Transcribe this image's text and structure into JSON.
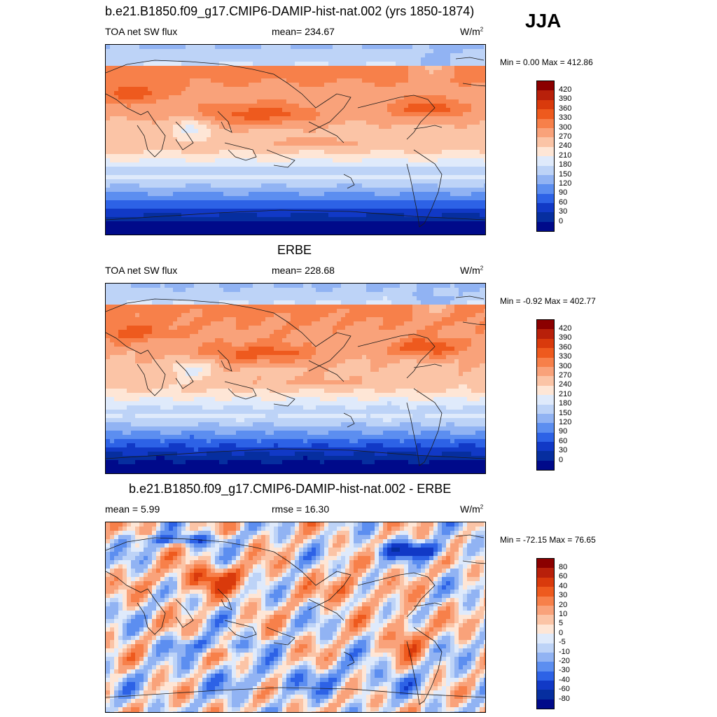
{
  "season": "JJA",
  "panels": [
    {
      "title": "b.e21.B1850.f09_g17.CMIP6-DAMIP-hist-nat.002 (yrs 1850-1874)",
      "left_label": "TOA net SW flux",
      "center_label": "mean= 234.67",
      "units_base": "W/m",
      "units_exp": "2",
      "minmax": "Min =   0.00 Max = 412.86",
      "colorbar": {
        "labels": [
          "420",
          "390",
          "360",
          "330",
          "300",
          "270",
          "240",
          "210",
          "180",
          "150",
          "120",
          "90",
          "60",
          "30",
          "0"
        ],
        "colors": [
          "#8b0000",
          "#b8200a",
          "#d93a0c",
          "#ee5a1e",
          "#f7804a",
          "#f9a27a",
          "#fbc4a6",
          "#fee6d6",
          "#dfeafb",
          "#bdd3f7",
          "#91b3f3",
          "#5c8ef0",
          "#2d62e6",
          "#1139c6",
          "#062e9f",
          "#000a8a"
        ]
      },
      "map_type": "sw"
    },
    {
      "title": "ERBE",
      "left_label": "TOA net SW flux",
      "center_label": "mean= 228.68",
      "units_base": "W/m",
      "units_exp": "2",
      "minmax": "Min =  -0.92 Max = 402.77",
      "colorbar": {
        "labels": [
          "420",
          "390",
          "360",
          "330",
          "300",
          "270",
          "240",
          "210",
          "180",
          "150",
          "120",
          "90",
          "60",
          "30",
          "0"
        ],
        "colors": [
          "#8b0000",
          "#b8200a",
          "#d93a0c",
          "#ee5a1e",
          "#f7804a",
          "#f9a27a",
          "#fbc4a6",
          "#fee6d6",
          "#dfeafb",
          "#bdd3f7",
          "#91b3f3",
          "#5c8ef0",
          "#2d62e6",
          "#1139c6",
          "#062e9f",
          "#000a8a"
        ]
      },
      "map_type": "sw"
    },
    {
      "title": "b.e21.B1850.f09_g17.CMIP6-DAMIP-hist-nat.002 - ERBE",
      "left_label": "mean =   5.99",
      "center_label": "rmse =  16.30",
      "units_base": "W/m",
      "units_exp": "2",
      "minmax": "Min = -72.15 Max =  76.65",
      "colorbar": {
        "labels": [
          "80",
          "60",
          "40",
          "30",
          "20",
          "10",
          "5",
          "0",
          "-5",
          "-10",
          "-20",
          "-30",
          "-40",
          "-60",
          "-80"
        ],
        "colors": [
          "#8b0000",
          "#b8200a",
          "#d93a0c",
          "#ee5a1e",
          "#f7804a",
          "#f9a27a",
          "#fbc4a6",
          "#fee6d6",
          "#dfeafb",
          "#bdd3f7",
          "#91b3f3",
          "#5c8ef0",
          "#2d62e6",
          "#1139c6",
          "#062e9f",
          "#000a8a"
        ]
      },
      "map_type": "diff"
    }
  ]
}
